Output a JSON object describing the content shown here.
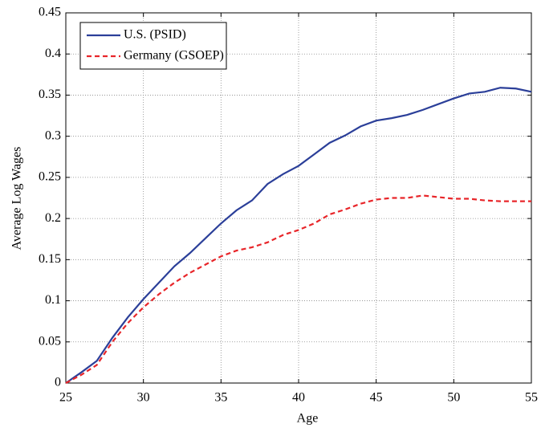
{
  "chart_data": {
    "type": "line",
    "xlabel": "Age",
    "ylabel": "Average Log Wages",
    "x": [
      25,
      26,
      27,
      28,
      29,
      30,
      31,
      32,
      33,
      34,
      35,
      36,
      37,
      38,
      39,
      40,
      41,
      42,
      43,
      44,
      45,
      46,
      47,
      48,
      49,
      50,
      51,
      52,
      53,
      54,
      55
    ],
    "series": [
      {
        "name": "U.S. (PSID)",
        "color": "#2b3f99",
        "dash": "solid",
        "values": [
          0,
          0.013,
          0.027,
          0.055,
          0.08,
          0.102,
          0.122,
          0.142,
          0.158,
          0.176,
          0.194,
          0.21,
          0.222,
          0.242,
          0.254,
          0.264,
          0.278,
          0.292,
          0.301,
          0.312,
          0.319,
          0.322,
          0.326,
          0.332,
          0.339,
          0.346,
          0.352,
          0.354,
          0.359,
          0.358,
          0.354
        ]
      },
      {
        "name": "Germany (GSOEP)",
        "color": "#e8262a",
        "dash": "dashed",
        "values": [
          0,
          0.01,
          0.022,
          0.05,
          0.073,
          0.092,
          0.108,
          0.122,
          0.134,
          0.144,
          0.154,
          0.161,
          0.165,
          0.171,
          0.18,
          0.186,
          0.194,
          0.205,
          0.211,
          0.218,
          0.223,
          0.225,
          0.225,
          0.228,
          0.226,
          0.224,
          0.224,
          0.222,
          0.221,
          0.221,
          0.221
        ]
      }
    ],
    "xlim": [
      25,
      55
    ],
    "xticks": [
      25,
      30,
      35,
      40,
      45,
      50,
      55
    ],
    "ylim": [
      0,
      0.45
    ],
    "yticks": [
      0,
      0.05,
      0.1,
      0.15,
      0.2,
      0.25,
      0.3,
      0.35,
      0.4,
      0.45
    ],
    "grid": true,
    "legend": "upper-left"
  }
}
